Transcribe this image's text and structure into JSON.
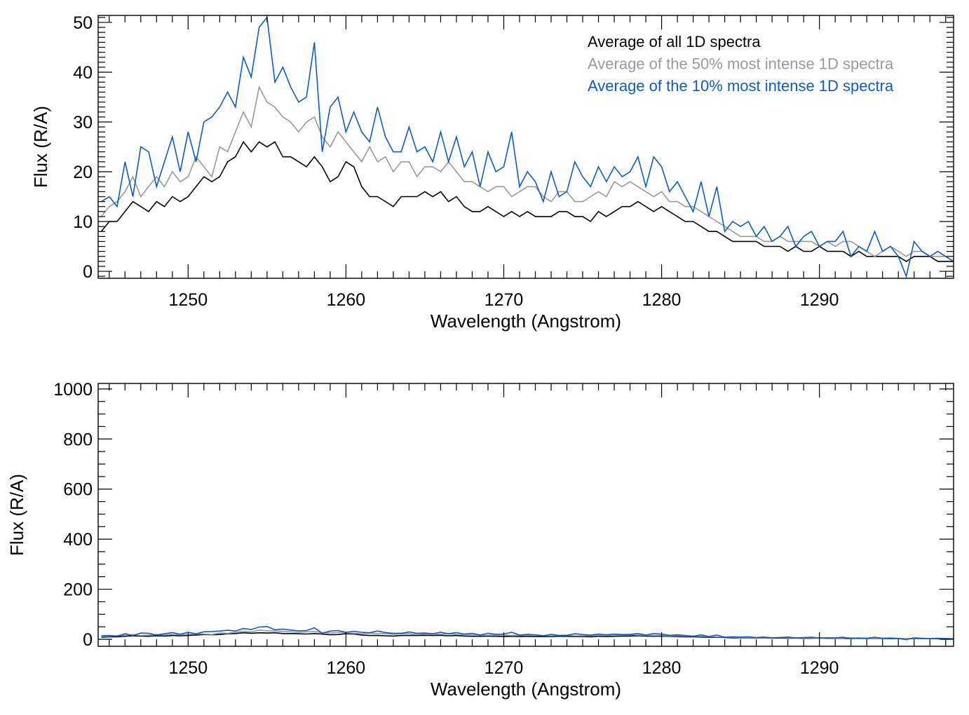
{
  "chart_data": [
    {
      "type": "line",
      "title": "",
      "xlabel": "Wavelength (Angstrom)",
      "ylabel": "Flux (R/A)",
      "xlim": [
        1244.3,
        1298.5
      ],
      "ylim": [
        -1.4,
        51.4
      ],
      "xticks": [
        1250,
        1260,
        1270,
        1280,
        1290
      ],
      "xtick_labels": [
        "1250",
        "1260",
        "1270",
        "1280",
        "1290"
      ],
      "yticks": [
        0,
        10,
        20,
        30,
        40,
        50
      ],
      "ytick_labels": [
        "0",
        "10",
        "20",
        "30",
        "40",
        "50"
      ],
      "x_minor_step": 1,
      "y_minor_step": 1,
      "grid": false,
      "legend_placement": "top-right",
      "x_start": 1244.5,
      "x_step": 0.5,
      "series": [
        {
          "name": "Average of all 1D spectra",
          "color": "#000000",
          "values": [
            8,
            10,
            10,
            12,
            14,
            13,
            12,
            14,
            13,
            15,
            14,
            15,
            17,
            19,
            18,
            19,
            22,
            23,
            26,
            24,
            26,
            25,
            26,
            23,
            23,
            22,
            21,
            23,
            21,
            18,
            19,
            22,
            21,
            17,
            15,
            15,
            14,
            13,
            15,
            15,
            15,
            16,
            15,
            16,
            14,
            15,
            13,
            12,
            12,
            13,
            12,
            11,
            12,
            11,
            12,
            11,
            11,
            11,
            12,
            12,
            11,
            11,
            10,
            12,
            11,
            12,
            13,
            13,
            14,
            13,
            12,
            13,
            12,
            11,
            10,
            10,
            9,
            8,
            8,
            7,
            6,
            6,
            6,
            6,
            5,
            5,
            5,
            4,
            5,
            4,
            4,
            5,
            4,
            4,
            4,
            3,
            4,
            3,
            3,
            3,
            3,
            3,
            2,
            3,
            3,
            3,
            2,
            2,
            2
          ]
        },
        {
          "name": "Average of the 50% most intense 1D spectra",
          "color": "#999999",
          "values": [
            11,
            13,
            14,
            16,
            19,
            15,
            17,
            19,
            17,
            20,
            18,
            19,
            23,
            21,
            19,
            25,
            24,
            28,
            32,
            29,
            37,
            34,
            33,
            31,
            30,
            28,
            30,
            31,
            27,
            25,
            28,
            26,
            24,
            22,
            25,
            22,
            23,
            20,
            22,
            22,
            19,
            21,
            21,
            20,
            22,
            20,
            18,
            18,
            17,
            16,
            17,
            17,
            15,
            16,
            17,
            17,
            15,
            14,
            16,
            16,
            14,
            14,
            15,
            16,
            15,
            18,
            17,
            18,
            17,
            16,
            15,
            16,
            14,
            14,
            13,
            13,
            12,
            11,
            10,
            9,
            8,
            7,
            7,
            7,
            6,
            6,
            7,
            6,
            6,
            6,
            6,
            5,
            6,
            5,
            6,
            6,
            5,
            4,
            3,
            4,
            5,
            4,
            3,
            4,
            4,
            3,
            3,
            3,
            2
          ]
        },
        {
          "name": "Average of the 10% most intense 1D spectra",
          "color": "#0a5ccc",
          "values": [
            14,
            15,
            13,
            22,
            15,
            25,
            24,
            17,
            22,
            27,
            20,
            28,
            22,
            30,
            31,
            33,
            36,
            33,
            43,
            39,
            49,
            51,
            38,
            41,
            37,
            34,
            35,
            46,
            24,
            33,
            35,
            28,
            32,
            28,
            26,
            33,
            27,
            24,
            24,
            29,
            24,
            25,
            22,
            28,
            22,
            27,
            21,
            24,
            17,
            24,
            20,
            21,
            28,
            17,
            20,
            18,
            14,
            20,
            15,
            16,
            22,
            19,
            17,
            21,
            18,
            21,
            19,
            20,
            23,
            17,
            23,
            21,
            16,
            18,
            15,
            12,
            18,
            11,
            17,
            8,
            10,
            9,
            10,
            7,
            9,
            6,
            7,
            9,
            5,
            7,
            8,
            5,
            6,
            6,
            8,
            3,
            5,
            4,
            8,
            4,
            5,
            3,
            -1,
            6,
            4,
            3,
            4,
            3,
            2
          ]
        }
      ]
    },
    {
      "type": "line",
      "title": "",
      "xlabel": "Wavelength (Angstrom)",
      "ylabel": "Flux (R/A)",
      "xlim": [
        1244.3,
        1298.5
      ],
      "ylim": [
        -28,
        1022
      ],
      "xticks": [
        1250,
        1260,
        1270,
        1280,
        1290
      ],
      "xtick_labels": [
        "1250",
        "1260",
        "1270",
        "1280",
        "1290"
      ],
      "yticks": [
        0,
        200,
        400,
        600,
        800,
        1000
      ],
      "ytick_labels": [
        "0",
        "200",
        "400",
        "600",
        "800",
        "1000"
      ],
      "x_minor_step": 1,
      "y_minor_step": 50,
      "grid": false,
      "series_same_as_panel": 0
    }
  ]
}
